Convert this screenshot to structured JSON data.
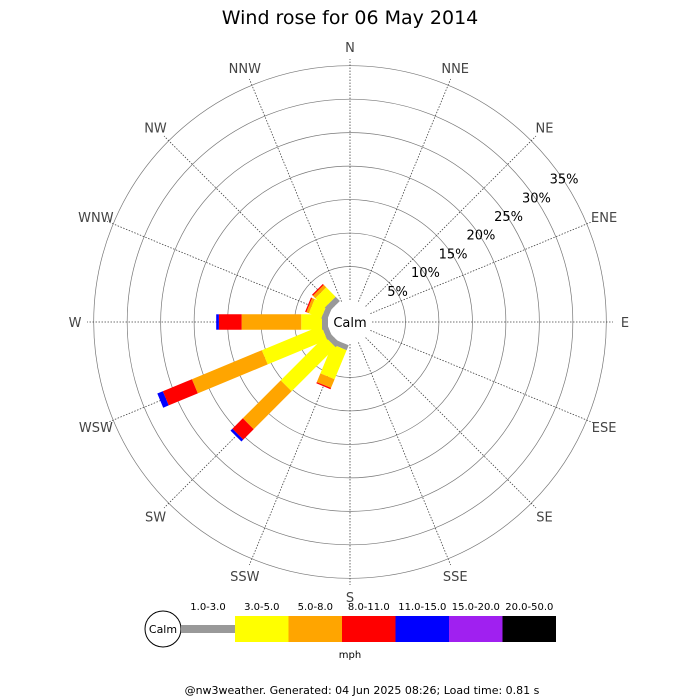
{
  "chart_data": {
    "type": "wind-rose",
    "title": "Wind rose for 06 May 2014",
    "directions": [
      "N",
      "NNE",
      "NE",
      "ENE",
      "E",
      "ESE",
      "SE",
      "SSE",
      "S",
      "SSW",
      "SW",
      "WSW",
      "W",
      "WNW",
      "NW",
      "NNW"
    ],
    "radial_ticks": [
      "5%",
      "10%",
      "15%",
      "20%",
      "25%",
      "30%",
      "35%"
    ],
    "radial_max": 36,
    "calm_label": "Calm",
    "bins": [
      {
        "label": "1.0-3.0",
        "color": "#999999"
      },
      {
        "label": "3.0-5.0",
        "color": "#ffff00"
      },
      {
        "label": "5.0-8.0",
        "color": "#ffa500"
      },
      {
        "label": "8.0-11.0",
        "color": "#ff0000"
      },
      {
        "label": "11.0-15.0",
        "color": "#0000ff"
      },
      {
        "label": "15.0-20.0",
        "color": "#a020f0"
      },
      {
        "label": "20.0-50.0",
        "color": "#000000"
      }
    ],
    "units": "mph",
    "series": [
      {
        "direction": "S",
        "values": [
          0,
          0,
          0,
          0,
          0,
          0,
          0
        ]
      },
      {
        "direction": "SSW",
        "values": [
          0.8,
          4.7,
          1.4,
          0.2,
          0,
          0,
          0
        ]
      },
      {
        "direction": "SW",
        "values": [
          0.9,
          9.3,
          8.0,
          2.2,
          0.4,
          0,
          0
        ]
      },
      {
        "direction": "WSW",
        "values": [
          0.9,
          9.6,
          11.3,
          4.7,
          0.9,
          0,
          0
        ]
      },
      {
        "direction": "W",
        "values": [
          0.9,
          3.1,
          8.9,
          3.4,
          0.4,
          0,
          0
        ]
      },
      {
        "direction": "WNW",
        "values": [
          0.9,
          2.0,
          0.4,
          0.2,
          0,
          0,
          0
        ]
      },
      {
        "direction": "NW",
        "values": [
          0.9,
          2.0,
          0.5,
          0.2,
          0,
          0,
          0
        ]
      }
    ]
  },
  "footer": "@nw3weather. Generated: 04 Jun 2025 08:26; Load time: 0.81 s"
}
